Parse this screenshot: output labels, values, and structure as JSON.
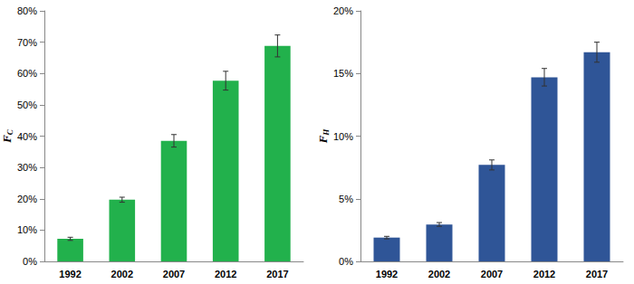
{
  "chart_data": [
    {
      "type": "bar",
      "ylabel": "FC",
      "categories": [
        "1992",
        "2002",
        "2007",
        "2012",
        "2017"
      ],
      "values": [
        7.2,
        19.7,
        38.5,
        57.7,
        68.8
      ],
      "errors": [
        0.5,
        0.8,
        2.0,
        3.0,
        3.5
      ],
      "color": "#22b14c",
      "ylim": [
        0,
        80
      ],
      "yticks": [
        {
          "value": 0,
          "label": "0%"
        },
        {
          "value": 10,
          "label": "10%"
        },
        {
          "value": 20,
          "label": "20%"
        },
        {
          "value": 30,
          "label": "30%"
        },
        {
          "value": 40,
          "label": "40%"
        },
        {
          "value": 50,
          "label": "50%"
        },
        {
          "value": 60,
          "label": "60%"
        },
        {
          "value": 70,
          "label": "70%"
        },
        {
          "value": 80,
          "label": "80%"
        }
      ],
      "grid": false
    },
    {
      "type": "bar",
      "ylabel": "FH",
      "categories": [
        "1992",
        "2002",
        "2007",
        "2012",
        "2017"
      ],
      "values": [
        1.9,
        2.95,
        7.7,
        14.7,
        16.7
      ],
      "errors": [
        0.1,
        0.15,
        0.4,
        0.7,
        0.8
      ],
      "color": "#2f5597",
      "ylim": [
        0,
        20
      ],
      "yticks": [
        {
          "value": 0,
          "label": "0%"
        },
        {
          "value": 5,
          "label": "5%"
        },
        {
          "value": 10,
          "label": "10%"
        },
        {
          "value": 15,
          "label": "15%"
        },
        {
          "value": 20,
          "label": "20%"
        }
      ],
      "grid": false
    }
  ]
}
